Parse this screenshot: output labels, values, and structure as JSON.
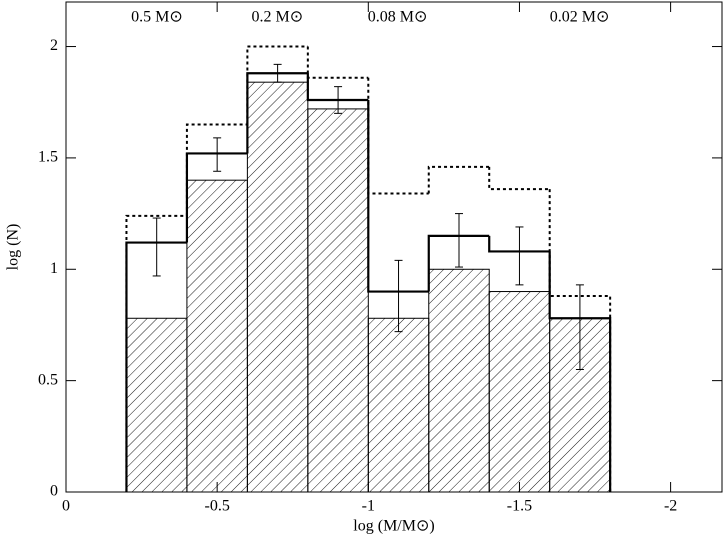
{
  "chart_data": {
    "type": "histogram",
    "xlabel": "log (M/M⊙)",
    "ylabel": "log (N)",
    "xlim": [
      0,
      -2.17
    ],
    "ylim": [
      0,
      2.2
    ],
    "xticks": [
      0,
      -0.5,
      -1,
      -1.5,
      -2
    ],
    "yticks": [
      0,
      0.5,
      1,
      1.5,
      2
    ],
    "x2ticks": [
      {
        "value": -0.301,
        "label": "0.5 M⊙"
      },
      {
        "value": -0.699,
        "label": "0.2 M⊙"
      },
      {
        "value": -1.097,
        "label": "0.08 M⊙"
      },
      {
        "value": -1.699,
        "label": "0.02 M⊙"
      }
    ],
    "bins": [
      -0.2,
      -0.4,
      -0.6,
      -0.8,
      -1.0,
      -1.2,
      -1.4,
      -1.6,
      -1.8
    ],
    "series": [
      {
        "style": "dotted",
        "color": "#000000",
        "values": [
          1.24,
          1.65,
          2.0,
          1.86,
          1.34,
          1.46,
          1.36,
          0.88
        ]
      },
      {
        "style": "hatched",
        "color": "#000000",
        "values": [
          0.78,
          1.4,
          1.84,
          1.72,
          0.78,
          1.0,
          0.9,
          0.78
        ]
      },
      {
        "style": "solid",
        "color": "#000000",
        "values": [
          1.12,
          1.52,
          1.88,
          1.76,
          0.9,
          1.15,
          1.08,
          0.78
        ],
        "errors_minus": [
          0.15,
          0.08,
          0.04,
          0.06,
          0.18,
          0.14,
          0.15,
          0.23
        ],
        "errors_plus": [
          0.11,
          0.07,
          0.04,
          0.06,
          0.14,
          0.1,
          0.11,
          0.15
        ]
      }
    ]
  }
}
